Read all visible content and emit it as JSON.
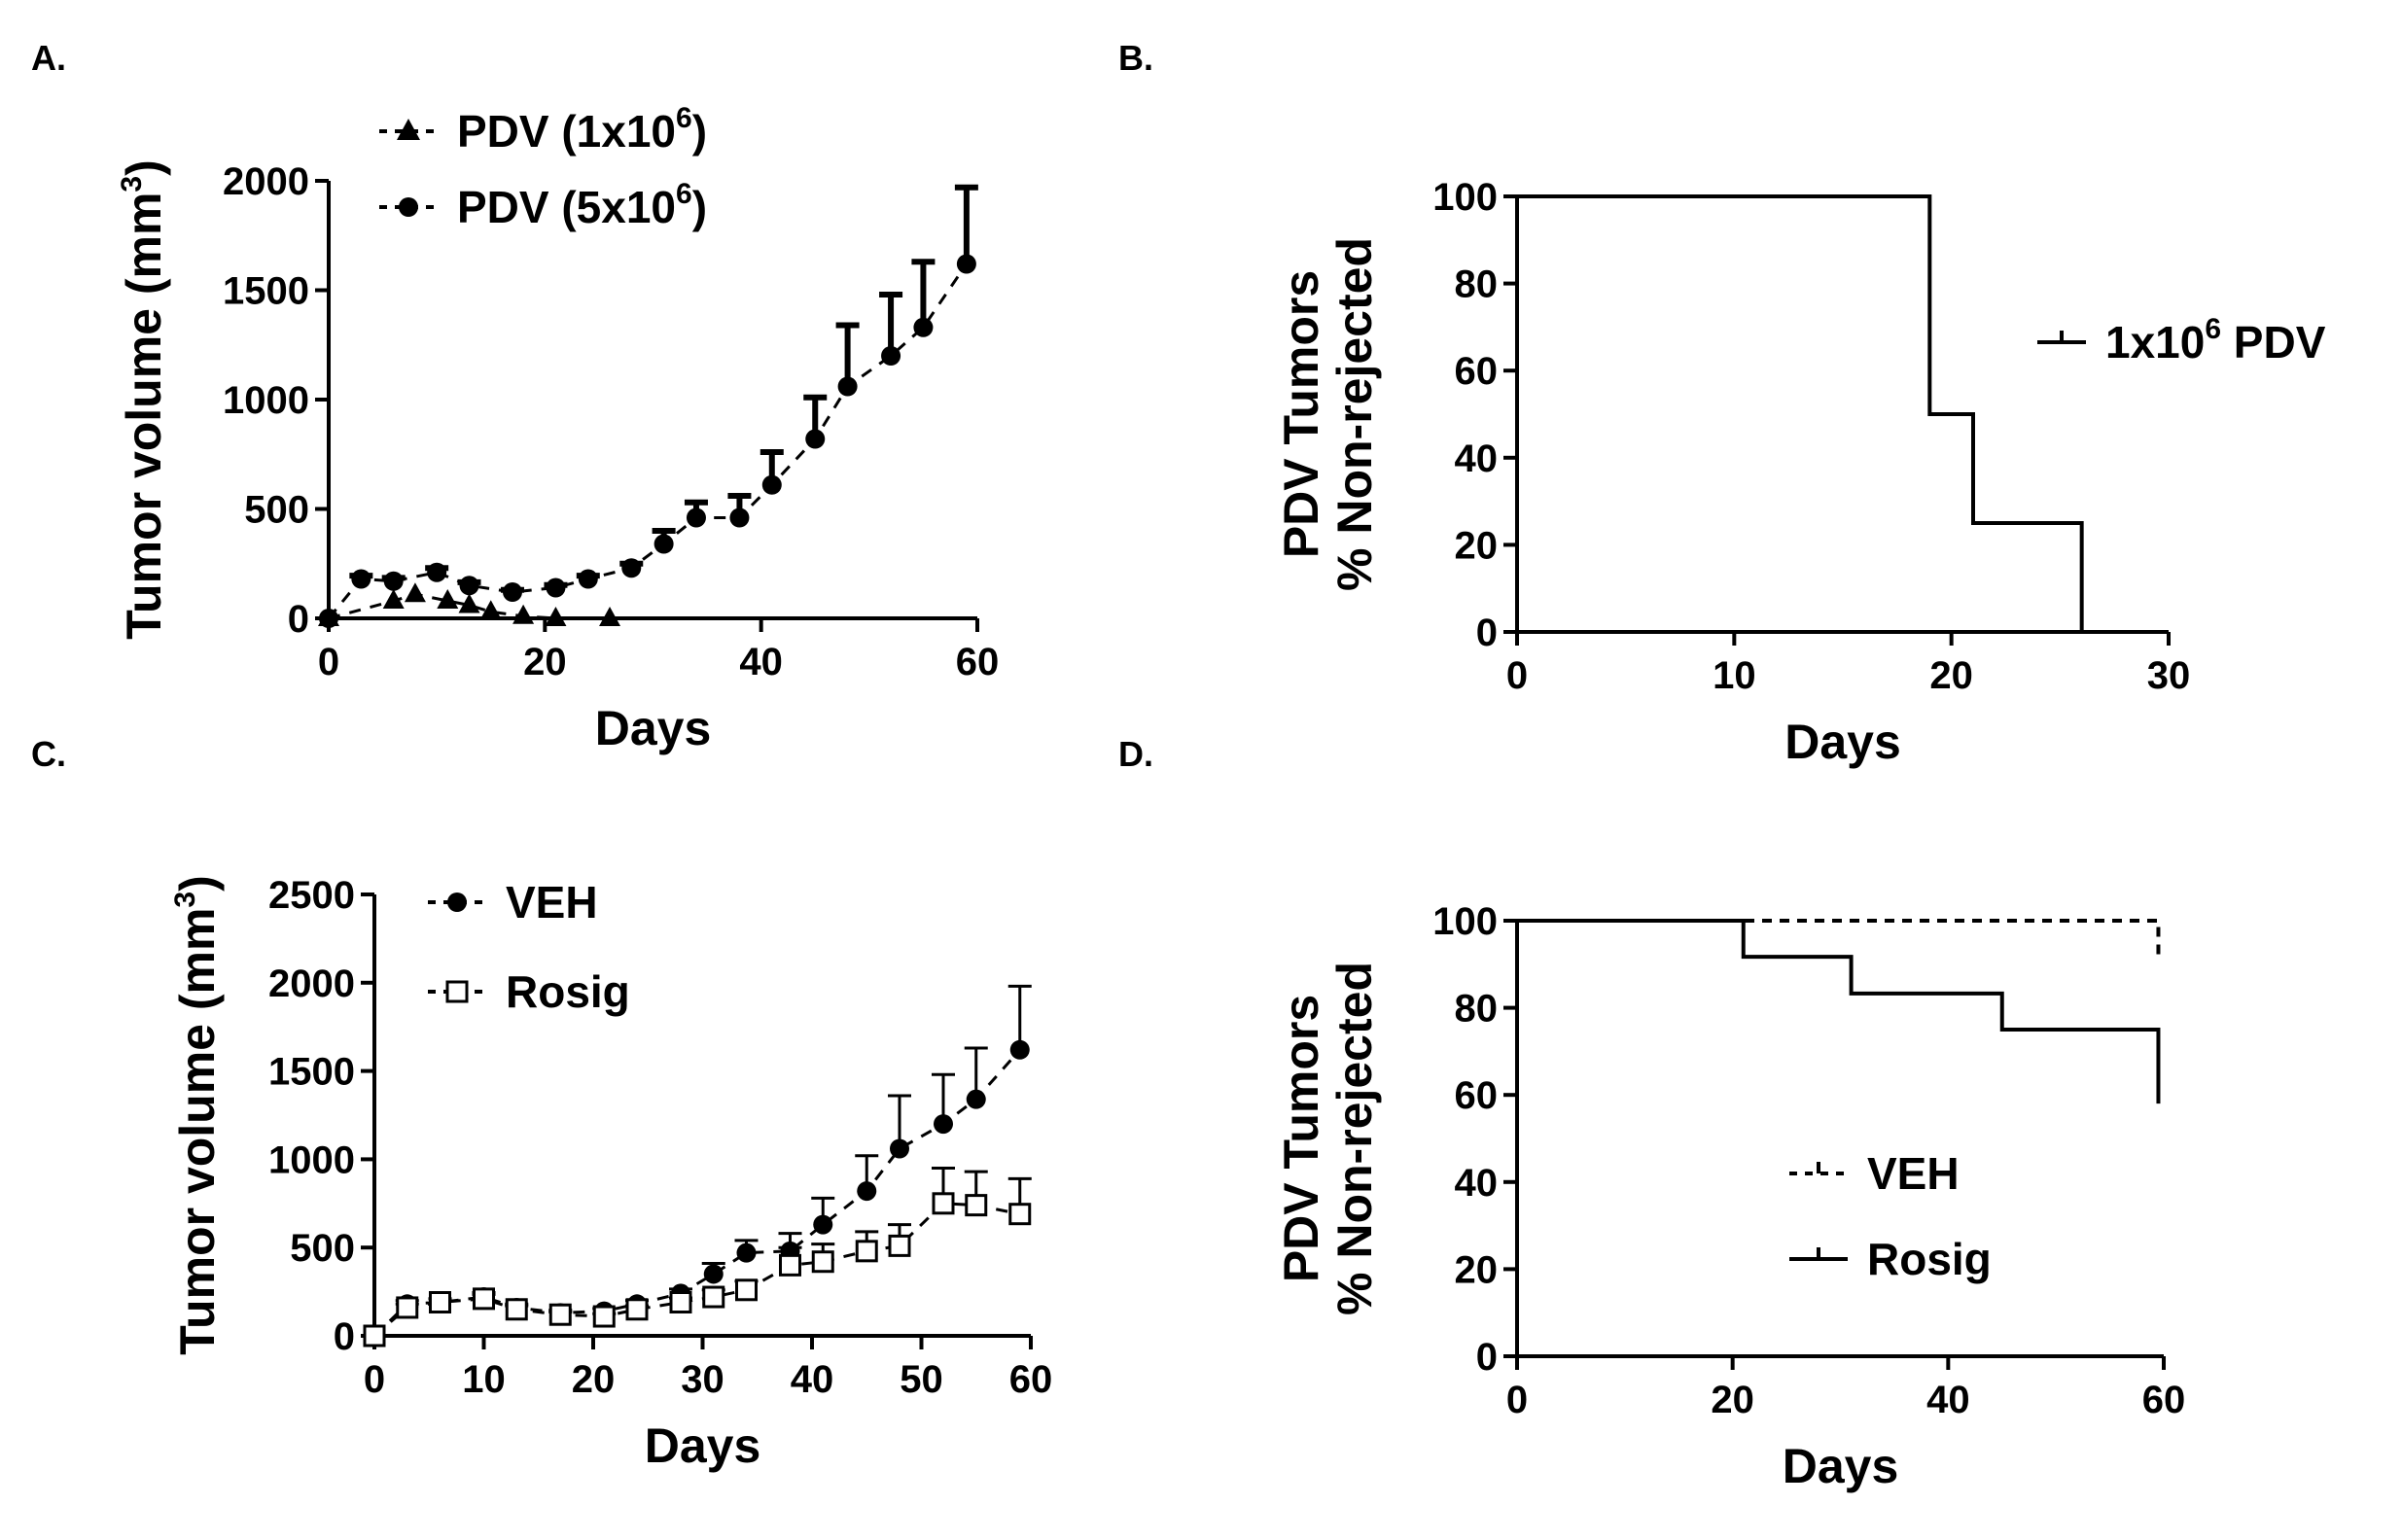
{
  "figure": {
    "panels": {
      "A": {
        "letter": "A."
      },
      "B": {
        "letter": "B."
      },
      "C": {
        "letter": "C."
      },
      "D": {
        "letter": "D."
      }
    }
  },
  "chart_data": [
    {
      "panel": "A",
      "type": "line",
      "xlabel": "Days",
      "ylabel": "Tumor volume  (mm",
      "ylabel_sup": "3",
      "ylabel_close": ")",
      "xlim": [
        0,
        60
      ],
      "ylim": [
        0,
        2000
      ],
      "xticks": [
        0,
        20,
        40,
        60
      ],
      "yticks": [
        0,
        500,
        1000,
        1500,
        2000
      ],
      "legend_position": "top-left",
      "series": [
        {
          "name": "PDV (1x10",
          "name_sup": "6",
          "name_close": ")",
          "marker": "triangle",
          "line": "dashed",
          "x": [
            0,
            6,
            8,
            11,
            13,
            15,
            18,
            21,
            26
          ],
          "y": [
            0,
            80,
            110,
            80,
            60,
            30,
            10,
            0,
            0
          ]
        },
        {
          "name": "PDV (5x10",
          "name_sup": "6",
          "name_close": ")",
          "marker": "circle",
          "line": "dashed",
          "x": [
            0,
            3,
            6,
            10,
            13,
            17,
            21,
            24,
            28,
            31,
            34,
            38,
            41,
            45,
            48,
            52,
            55,
            59
          ],
          "y": [
            0,
            180,
            170,
            210,
            150,
            120,
            140,
            180,
            230,
            340,
            460,
            460,
            610,
            820,
            1060,
            1200,
            1330,
            1620
          ],
          "err": [
            0,
            15,
            15,
            20,
            15,
            10,
            12,
            15,
            20,
            60,
            70,
            100,
            150,
            190,
            280,
            280,
            300,
            350
          ]
        }
      ]
    },
    {
      "panel": "B",
      "type": "line",
      "style": "step",
      "xlabel": "Days",
      "ylabel": "PDV Tumors",
      "ylabel2": "% Non-rejected",
      "xlim": [
        0,
        30
      ],
      "ylim": [
        0,
        100
      ],
      "xticks": [
        0,
        10,
        20,
        30
      ],
      "yticks": [
        0,
        20,
        40,
        60,
        80,
        100
      ],
      "legend_position": "right",
      "series": [
        {
          "name": "1x10",
          "name_sup": "6",
          "name_close": " PDV",
          "line": "solid",
          "x": [
            0,
            19,
            21,
            26
          ],
          "y": [
            100,
            50,
            25,
            0
          ]
        }
      ]
    },
    {
      "panel": "C",
      "type": "line",
      "xlabel": "Days",
      "ylabel": "Tumor volume  (mm",
      "ylabel_sup": "3",
      "ylabel_close": ")",
      "xlim": [
        0,
        60
      ],
      "ylim": [
        0,
        2500
      ],
      "xticks": [
        0,
        10,
        20,
        30,
        40,
        50,
        60
      ],
      "yticks": [
        0,
        500,
        1000,
        1500,
        2000,
        2500
      ],
      "legend_position": "top-left",
      "series": [
        {
          "name": "VEH",
          "marker": "circle",
          "line": "dashed",
          "x": [
            0,
            3,
            6,
            10,
            13,
            17,
            21,
            24,
            28,
            31,
            34,
            38,
            41,
            45,
            48,
            52,
            55,
            59
          ],
          "y": [
            0,
            180,
            190,
            220,
            160,
            130,
            140,
            180,
            240,
            350,
            470,
            480,
            630,
            820,
            1060,
            1200,
            1340,
            1620
          ],
          "err": [
            0,
            20,
            20,
            25,
            20,
            15,
            15,
            20,
            25,
            60,
            70,
            100,
            150,
            200,
            300,
            280,
            290,
            360
          ]
        },
        {
          "name": "Rosig",
          "marker": "square-open",
          "line": "dashed",
          "x": [
            0,
            3,
            6,
            10,
            13,
            17,
            21,
            24,
            28,
            31,
            34,
            38,
            41,
            45,
            48,
            52,
            55,
            59
          ],
          "y": [
            0,
            160,
            190,
            210,
            150,
            120,
            110,
            150,
            190,
            220,
            260,
            400,
            420,
            480,
            510,
            750,
            740,
            690
          ],
          "err": [
            0,
            20,
            20,
            25,
            20,
            15,
            15,
            20,
            25,
            40,
            50,
            100,
            100,
            110,
            120,
            200,
            190,
            200
          ]
        }
      ]
    },
    {
      "panel": "D",
      "type": "line",
      "style": "step",
      "xlabel": "Days",
      "ylabel": "PDV Tumors",
      "ylabel2": "% Non-rejected",
      "xlim": [
        0,
        60
      ],
      "ylim": [
        0,
        100
      ],
      "xticks": [
        0,
        20,
        40,
        60
      ],
      "yticks": [
        0,
        20,
        40,
        60,
        80,
        100
      ],
      "legend_position": "bottom-center",
      "series": [
        {
          "name": "VEH",
          "line": "dashed",
          "x": [
            0,
            59.5
          ],
          "y": [
            100,
            92
          ]
        },
        {
          "name": "Rosig",
          "line": "solid",
          "x": [
            0,
            21,
            31,
            45,
            59.5
          ],
          "y": [
            100,
            91.7,
            83.3,
            75,
            58
          ]
        }
      ]
    }
  ]
}
